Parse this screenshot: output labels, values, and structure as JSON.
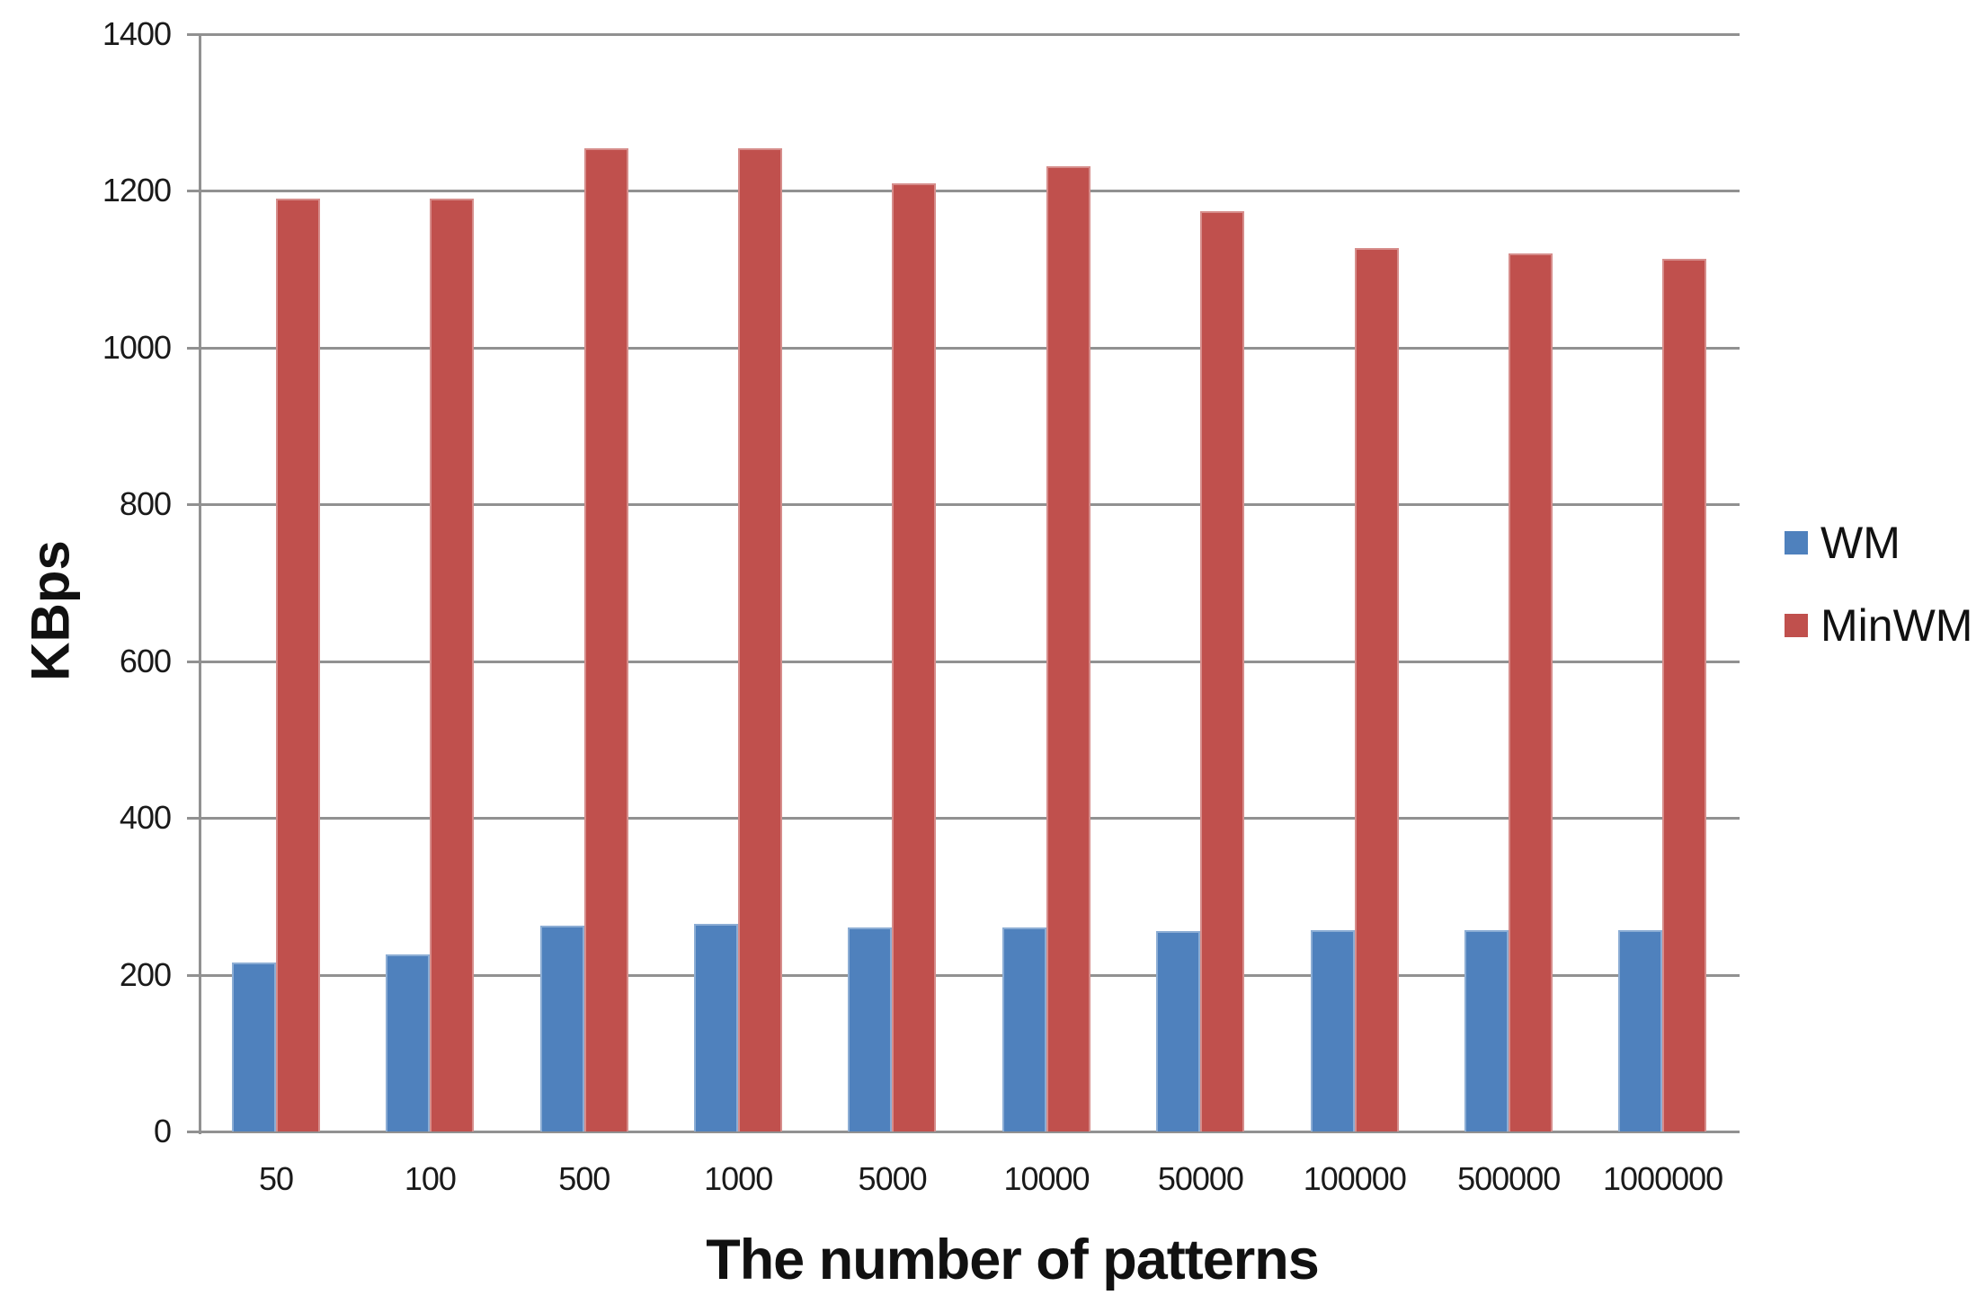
{
  "chart_data": {
    "type": "bar",
    "title": "",
    "xlabel": "The number of patterns",
    "ylabel": "KBps",
    "categories": [
      "50",
      "100",
      "500",
      "1000",
      "5000",
      "10000",
      "50000",
      "100000",
      "500000",
      "1000000"
    ],
    "series": [
      {
        "name": "WM",
        "color": "#4F81BD",
        "values": [
          216,
          226,
          263,
          265,
          260,
          260,
          256,
          257,
          257,
          257
        ]
      },
      {
        "name": "MinWM",
        "color": "#C0504D",
        "values": [
          1190,
          1190,
          1254,
          1254,
          1210,
          1231,
          1174,
          1127,
          1120,
          1113
        ]
      }
    ],
    "ylim": [
      0,
      1400
    ],
    "ytick_step": 200,
    "yticks": [
      0,
      200,
      400,
      600,
      800,
      1000,
      1200,
      1400
    ],
    "grid": true,
    "legend_position": "right",
    "legend": [
      "WM",
      "MinWM"
    ]
  },
  "style": {
    "gridline_color": "#919191",
    "axis_color": "#919191",
    "text_color": "#1a1a1a",
    "background": "#ffffff"
  }
}
